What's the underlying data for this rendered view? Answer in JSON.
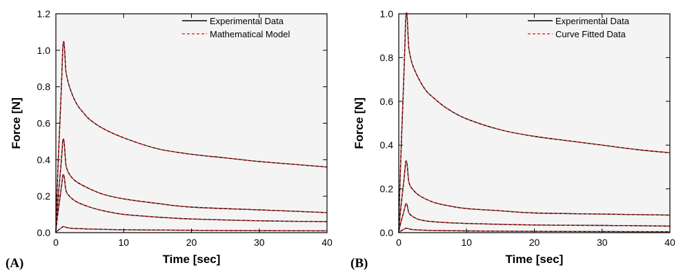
{
  "chart_data": [
    {
      "type": "line",
      "panel_label": "(A)",
      "xlabel": "Time [sec]",
      "ylabel": "Force [N]",
      "xlim": [
        0,
        40
      ],
      "ylim": [
        0,
        1.2
      ],
      "xticks": [
        "0",
        "10",
        "20",
        "30",
        "40"
      ],
      "yticks": [
        "0.0",
        "0.2",
        "0.4",
        "0.6",
        "0.8",
        "1.0",
        "1.2"
      ],
      "legend_position": "top-right",
      "legend": [
        {
          "label": "Experimental Data",
          "style": "solid",
          "color": "#000000"
        },
        {
          "label": "Mathematical Model",
          "style": "dashed",
          "color": "#e8312a"
        }
      ],
      "curves": [
        {
          "x": [
            0,
            1,
            1.5,
            2,
            3,
            4,
            5,
            7,
            10,
            15,
            20,
            25,
            30,
            35,
            40
          ],
          "y": [
            0,
            1.0,
            0.88,
            0.8,
            0.71,
            0.66,
            0.62,
            0.57,
            0.52,
            0.46,
            0.43,
            0.41,
            0.39,
            0.375,
            0.36
          ]
        },
        {
          "x": [
            0,
            1,
            1.5,
            2,
            3,
            5,
            7,
            10,
            15,
            20,
            30,
            40
          ],
          "y": [
            0,
            0.5,
            0.37,
            0.32,
            0.28,
            0.24,
            0.21,
            0.185,
            0.16,
            0.14,
            0.125,
            0.11
          ]
        },
        {
          "x": [
            0,
            1,
            1.5,
            2,
            3,
            5,
            7,
            10,
            15,
            20,
            30,
            40
          ],
          "y": [
            0,
            0.31,
            0.23,
            0.2,
            0.17,
            0.14,
            0.12,
            0.1,
            0.085,
            0.075,
            0.065,
            0.06
          ]
        },
        {
          "x": [
            0,
            1,
            2,
            5,
            10,
            20,
            30,
            40
          ],
          "y": [
            0,
            0.032,
            0.025,
            0.02,
            0.016,
            0.013,
            0.011,
            0.01
          ]
        }
      ]
    },
    {
      "type": "line",
      "panel_label": "(B)",
      "xlabel": "Time [sec]",
      "ylabel": "Force [N]",
      "xlim": [
        0,
        40
      ],
      "ylim": [
        0,
        1.0
      ],
      "xticks": [
        "0",
        "10",
        "20",
        "30",
        "40"
      ],
      "yticks": [
        "0.0",
        "0.2",
        "0.4",
        "0.6",
        "0.8",
        "1.0"
      ],
      "legend_position": "top-right",
      "legend": [
        {
          "label": "Experimental Data",
          "style": "solid",
          "color": "#000000"
        },
        {
          "label": "Curve Fitted Data",
          "style": "dashed",
          "color": "#e8312a"
        }
      ],
      "curves": [
        {
          "x": [
            0,
            1,
            1.5,
            2,
            3,
            4,
            5,
            7,
            10,
            15,
            20,
            25,
            30,
            35,
            40
          ],
          "y": [
            0,
            0.96,
            0.84,
            0.77,
            0.7,
            0.65,
            0.62,
            0.57,
            0.52,
            0.47,
            0.44,
            0.42,
            0.4,
            0.38,
            0.365
          ]
        },
        {
          "x": [
            0,
            1,
            1.5,
            2,
            3,
            5,
            7,
            10,
            15,
            20,
            30,
            40
          ],
          "y": [
            0,
            0.32,
            0.23,
            0.2,
            0.17,
            0.14,
            0.125,
            0.11,
            0.1,
            0.09,
            0.085,
            0.08
          ]
        },
        {
          "x": [
            0,
            1,
            1.5,
            2,
            3,
            5,
            10,
            20,
            30,
            40
          ],
          "y": [
            0,
            0.13,
            0.09,
            0.075,
            0.06,
            0.05,
            0.042,
            0.035,
            0.033,
            0.03
          ]
        },
        {
          "x": [
            0,
            1,
            2,
            5,
            10,
            20,
            30,
            40
          ],
          "y": [
            0,
            0.02,
            0.014,
            0.01,
            0.008,
            0.006,
            0.005,
            0.004
          ]
        }
      ]
    }
  ]
}
